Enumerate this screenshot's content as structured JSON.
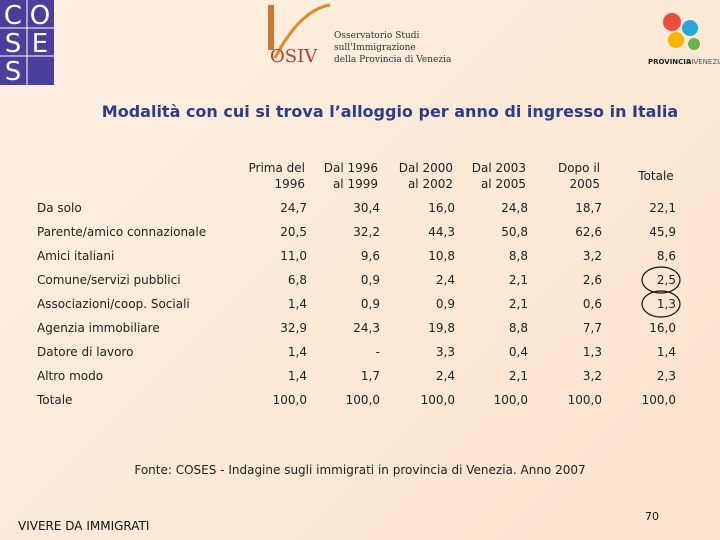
{
  "header": {
    "coses_letters": [
      "C",
      "O",
      "S",
      "E",
      "S"
    ],
    "osiv_mark": "OSIV",
    "osiv_lines": [
      "Osservatorio Studi",
      "sull'Immigrazione",
      "della Provincia di Venezia"
    ],
    "provincia": [
      "PROVINCIA",
      "DIVENEZIA"
    ]
  },
  "title": "Modalità con cui si trova l’alloggio per anno di ingresso in Italia",
  "table": {
    "columns": [
      [
        "Prima del",
        "1996"
      ],
      [
        "Dal 1996",
        "al 1999"
      ],
      [
        "Dal 2000",
        "al 2002"
      ],
      [
        "Dal 2003",
        "al 2005"
      ],
      [
        "Dopo il",
        "2005"
      ],
      [
        "Totale"
      ]
    ],
    "rows": [
      [
        "Da solo",
        "24,7",
        "30,4",
        "16,0",
        "24,8",
        "18,7",
        "22,1"
      ],
      [
        "Parente/amico connazionale",
        "20,5",
        "32,2",
        "44,3",
        "50,8",
        "62,6",
        "45,9"
      ],
      [
        "Amici italiani",
        "11,0",
        "9,6",
        "10,8",
        "8,8",
        "3,2",
        "8,6"
      ],
      [
        "Comune/servizi pubblici",
        "6,8",
        "0,9",
        "2,4",
        "2,1",
        "2,6",
        "2,5"
      ],
      [
        "Associazioni/coop. Sociali",
        "1,4",
        "0,9",
        "0,9",
        "2,1",
        "0,6",
        "1,3"
      ],
      [
        "Agenzia immobiliare",
        "32,9",
        "24,3",
        "19,8",
        "8,8",
        "7,7",
        "16,0"
      ],
      [
        "Datore di lavoro",
        "1,4",
        "-",
        "3,3",
        "0,4",
        "1,3",
        "1,4"
      ],
      [
        "Altro modo",
        "1,4",
        "1,7",
        "2,4",
        "2,1",
        "3,2",
        "2,3"
      ],
      [
        "Totale",
        "100,0",
        "100,0",
        "100,0",
        "100,0",
        "100,0",
        "100,0"
      ]
    ]
  },
  "source": "Fonte: COSES - Indagine sugli immigrati in provincia di Venezia. Anno 2007",
  "footer": "VIVERE DA IMMIGRATI",
  "page_number": "70"
}
